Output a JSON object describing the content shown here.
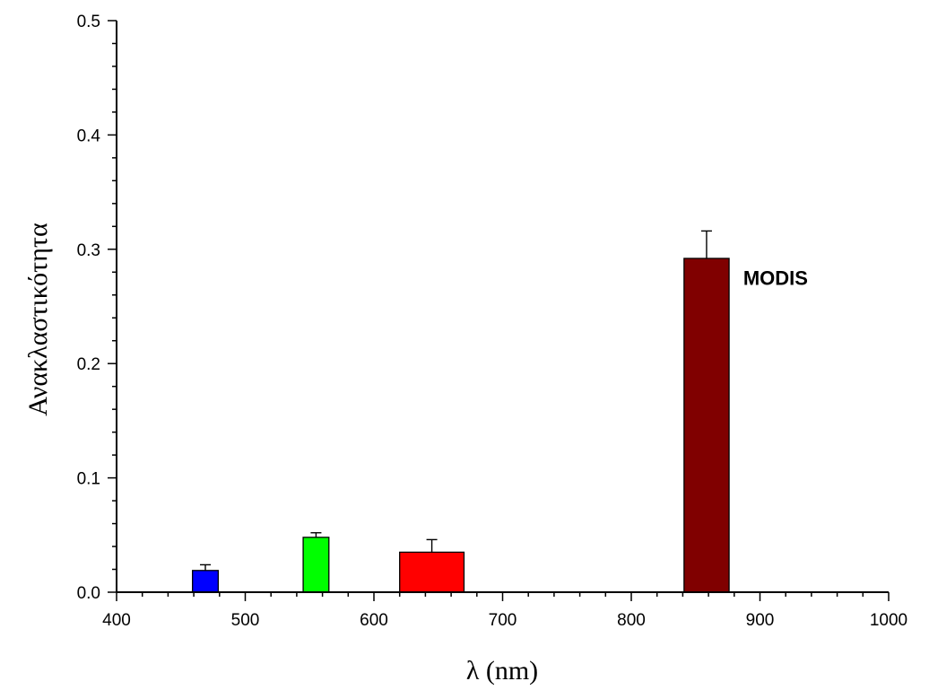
{
  "chart_data": {
    "type": "bar",
    "title": "",
    "xlabel": "λ (nm)",
    "ylabel": "Ανακλαστικότητα",
    "xlim": [
      400,
      1000
    ],
    "ylim": [
      0.0,
      0.5
    ],
    "x_ticks": [
      400,
      500,
      600,
      700,
      800,
      900,
      1000
    ],
    "y_ticks": [
      0.0,
      0.1,
      0.2,
      0.3,
      0.4,
      0.5
    ],
    "x_tick_labels": [
      "400",
      "500",
      "600",
      "700",
      "800",
      "900",
      "1000"
    ],
    "y_tick_labels": [
      "0.0",
      "0.1",
      "0.2",
      "0.3",
      "0.4",
      "0.5"
    ],
    "grid": false,
    "bars": [
      {
        "x_start": 459,
        "x_end": 479,
        "value": 0.019,
        "error": 0.005,
        "color": "#0000ff"
      },
      {
        "x_start": 545,
        "x_end": 565,
        "value": 0.048,
        "error": 0.004,
        "color": "#00ff00"
      },
      {
        "x_start": 620,
        "x_end": 670,
        "value": 0.035,
        "error": 0.011,
        "color": "#ff0000"
      },
      {
        "x_start": 841,
        "x_end": 876,
        "value": 0.292,
        "error": 0.024,
        "color": "#800000"
      }
    ],
    "annotations": [
      {
        "text": "MODIS",
        "x": 887,
        "y": 0.275
      }
    ]
  }
}
